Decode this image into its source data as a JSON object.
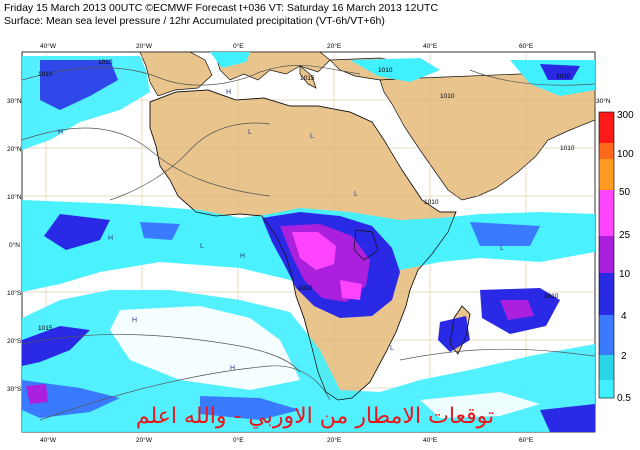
{
  "header": {
    "line1": "Friday 15 March 2013 00UTC ©ECMWF Forecast t+036 VT: Saturday 16 March 2013 12UTC",
    "line2": "Surface: Mean sea level pressure / 12hr Accumulated precipitation (VT-6h/VT+6h)"
  },
  "map": {
    "lon_ticks_top": [
      "40°W",
      "20°W",
      "0°E",
      "20°E",
      "40°E",
      "60°E"
    ],
    "lon_ticks_bottom": [
      "40°W",
      "20°W",
      "0°E",
      "20°E",
      "40°E",
      "60°E"
    ],
    "lat_ticks_left": [
      "30°N",
      "20°N",
      "10°N",
      "0°N",
      "10°S",
      "20°S",
      "30°S"
    ],
    "lat_tick_right_top": "30°N",
    "isobar_labels": [
      "1010",
      "1010",
      "1015",
      "1010",
      "1010",
      "1010",
      "1010",
      "1010",
      "1010",
      "1010",
      "1015"
    ],
    "pressure_markers": [
      "H",
      "H",
      "L",
      "L",
      "L",
      "H",
      "L",
      "H",
      "L",
      "H",
      "L",
      "H"
    ],
    "colors": {
      "land": "#e9c48c",
      "sea": "#ffffff",
      "grid": "#d8b98a"
    }
  },
  "colorbar": {
    "levels": [
      "300",
      "100",
      "50",
      "25",
      "10",
      "4",
      "2",
      "0.5"
    ],
    "colors": [
      "#ff1a1a",
      "#ff6a1a",
      "#ff9a20",
      "#ff44ff",
      "#aa20dd",
      "#2a2ae6",
      "#3a7aff",
      "#2ad6e6",
      "#40f0ff"
    ]
  },
  "overlay_text": "توقعات الامطار من الاوربي - والله اعلم"
}
